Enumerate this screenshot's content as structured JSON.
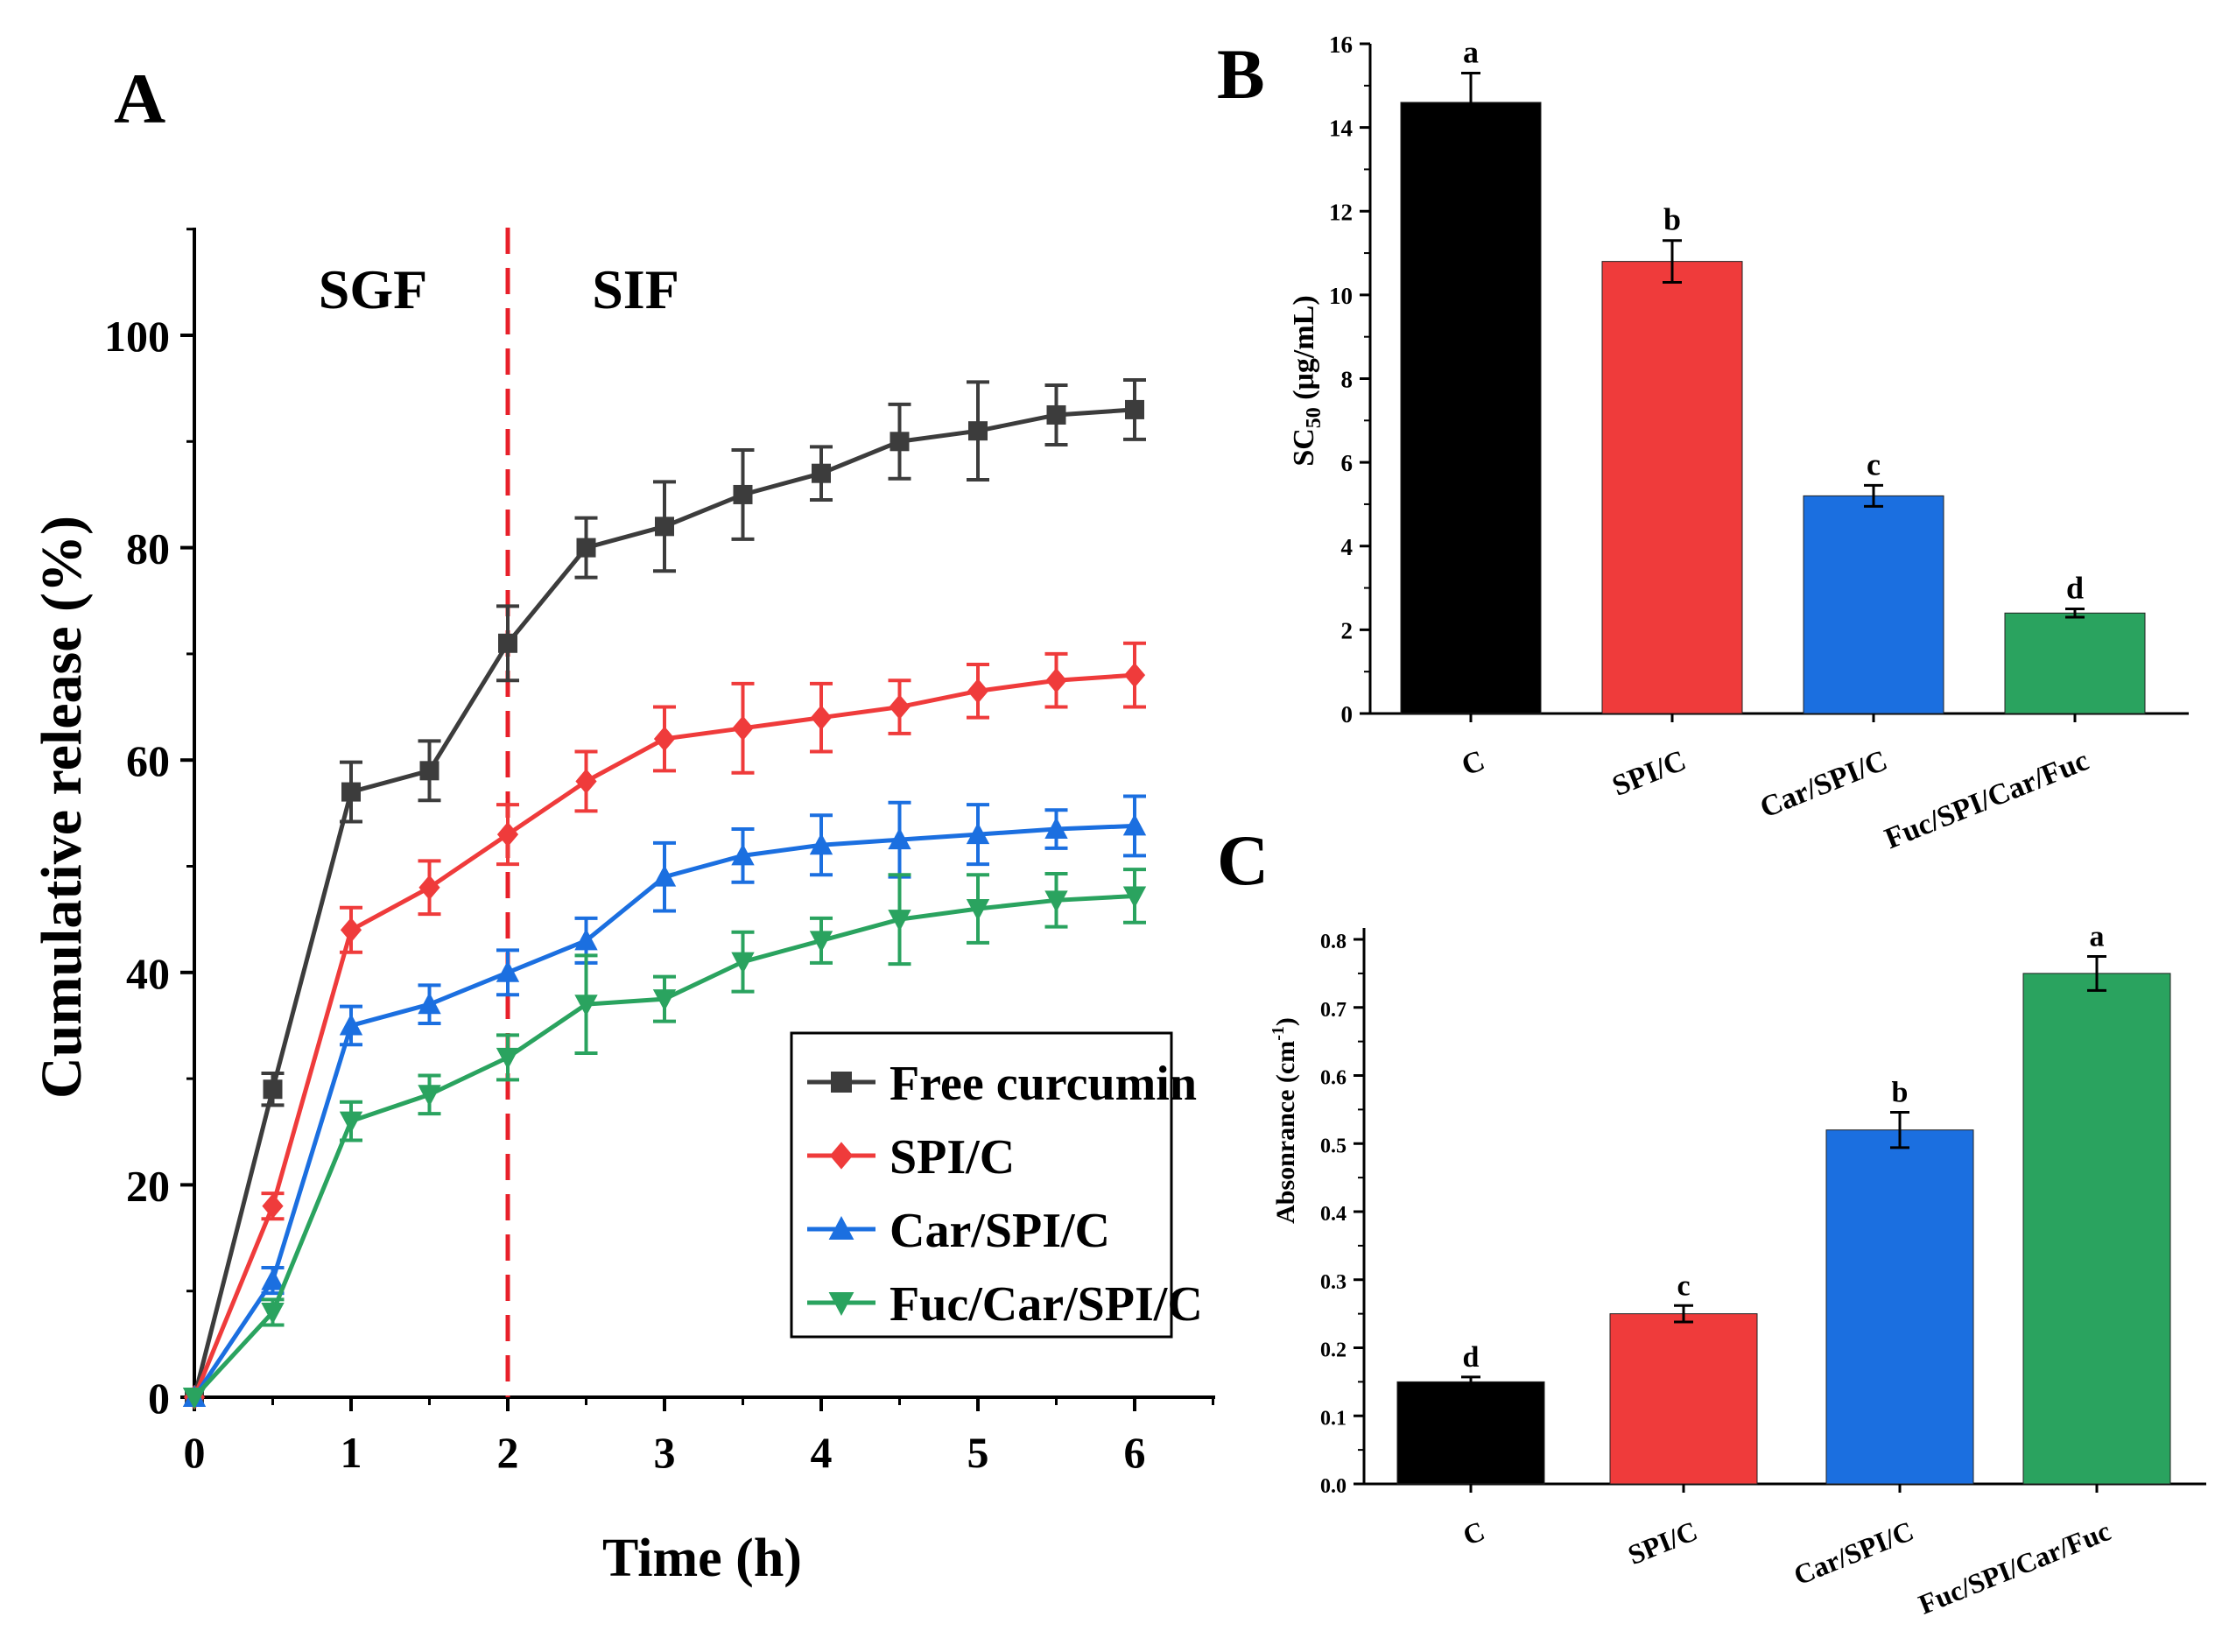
{
  "colors": {
    "black": "#000000",
    "gray_series": "#3c3c3c",
    "red": "#ef3b3b",
    "blue": "#1b6fe0",
    "green": "#2aa35f",
    "divider": "#e8202a"
  },
  "panels": {
    "a": "A",
    "b": "B",
    "c": "C"
  },
  "chart_data": [
    {
      "type": "line",
      "panel": "A",
      "title": "",
      "xlabel": "Time (h)",
      "ylabel": "Cumulative release (%)",
      "xlim": [
        0,
        6.5
      ],
      "ylim": [
        0,
        110
      ],
      "xticks": [
        0,
        1,
        2,
        3,
        4,
        5,
        6
      ],
      "yticks": [
        0,
        20,
        40,
        60,
        80,
        100
      ],
      "x": [
        0,
        0.5,
        1,
        1.5,
        2,
        2.5,
        3,
        3.5,
        4,
        4.5,
        5,
        5.5,
        6
      ],
      "region_labels": [
        "SGF",
        "SIF"
      ],
      "divider_x": 2,
      "legend_position": "bottom-right",
      "series": [
        {
          "name": "Free curcumin",
          "marker": "square",
          "color": "#3c3c3c",
          "values": [
            0,
            29,
            57,
            59,
            71,
            80,
            82,
            85,
            87,
            90,
            91,
            92.5,
            93
          ],
          "errors": [
            0,
            1.5,
            2.8,
            2.8,
            3.5,
            2.8,
            4.2,
            4.2,
            2.5,
            3.5,
            4.6,
            2.8,
            2.8
          ]
        },
        {
          "name": "SPI/C",
          "marker": "diamond",
          "color": "#ef3b3b",
          "values": [
            0,
            18,
            44,
            48,
            53,
            58,
            62,
            63,
            64,
            65,
            66.5,
            67.5,
            68
          ],
          "errors": [
            0,
            1.2,
            2.1,
            2.5,
            2.8,
            2.8,
            3.0,
            4.2,
            3.2,
            2.5,
            2.5,
            2.5,
            3.0
          ]
        },
        {
          "name": "Car/SPI/C",
          "marker": "triangle-up",
          "color": "#1b6fe0",
          "values": [
            0,
            11,
            35,
            37,
            40,
            43,
            49,
            51,
            52,
            52.5,
            53,
            53.5,
            53.8
          ],
          "errors": [
            0,
            1.2,
            1.8,
            1.8,
            2.1,
            2.1,
            3.2,
            2.5,
            2.8,
            3.5,
            2.8,
            1.8,
            2.8
          ]
        },
        {
          "name": "Fuc/Car/SPI/C",
          "marker": "triangle-down",
          "color": "#2aa35f",
          "values": [
            0,
            8,
            26,
            28.5,
            32,
            37,
            37.5,
            41,
            43,
            45,
            46,
            46.8,
            47.2
          ],
          "errors": [
            0,
            1.2,
            1.8,
            1.8,
            2.1,
            4.6,
            2.1,
            2.8,
            2.1,
            4.2,
            3.2,
            2.5,
            2.5
          ]
        }
      ]
    },
    {
      "type": "bar",
      "panel": "B",
      "title": "",
      "xlabel": "",
      "ylabel_main": "SC",
      "ylabel_sub": "50",
      "ylabel_rest": " (μg/mL)",
      "ylim": [
        0,
        16
      ],
      "yticks": [
        0,
        2,
        4,
        6,
        8,
        10,
        12,
        14,
        16
      ],
      "categories": [
        "C",
        "SPI/C",
        "Car/SPI/C",
        "Fuc/SPI/Car/Fuc"
      ],
      "values": [
        14.6,
        10.8,
        5.2,
        2.4
      ],
      "errors": [
        0.7,
        0.5,
        0.25,
        0.1
      ],
      "letters": [
        "a",
        "b",
        "c",
        "d"
      ],
      "colors": [
        "#000000",
        "#ef3b3b",
        "#1b6fe0",
        "#2aa35f"
      ]
    },
    {
      "type": "bar",
      "panel": "C",
      "title": "",
      "xlabel": "",
      "ylabel_main": "Absonrance (cm",
      "ylabel_sup": "-1",
      "ylabel_rest": ")",
      "ylim": [
        0,
        0.82
      ],
      "yticks": [
        "0.0",
        "0.1",
        "0.2",
        "0.3",
        "0.4",
        "0.5",
        "0.6",
        "0.7",
        "0.8"
      ],
      "categories": [
        "C",
        "SPI/C",
        "Car/SPI/C",
        "Fuc/SPI/Car/Fuc"
      ],
      "values": [
        0.15,
        0.25,
        0.52,
        0.75
      ],
      "errors": [
        0.007,
        0.012,
        0.026,
        0.025
      ],
      "letters": [
        "d",
        "c",
        "b",
        "a"
      ],
      "colors": [
        "#000000",
        "#ef3b3b",
        "#1b6fe0",
        "#2aa35f"
      ]
    }
  ]
}
